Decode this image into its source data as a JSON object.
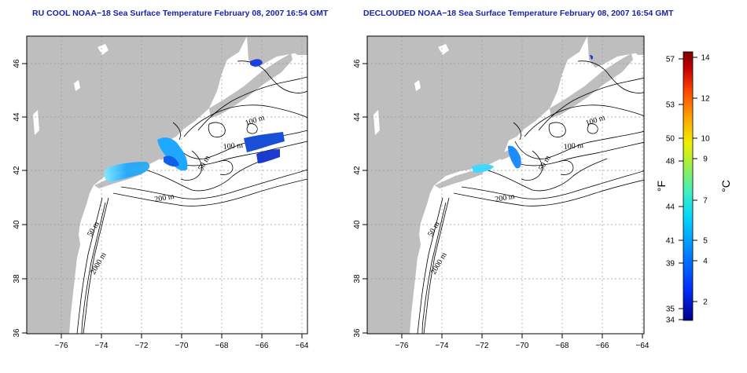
{
  "titles": {
    "left": "RU COOL NOAA−18 Sea Surface Temperature February 08, 2007 16:54 GMT",
    "right": "DECLOUDED NOAA−18 Sea Surface Temperature February 08, 2007 16:54 GMT"
  },
  "axes": {
    "lon_ticks": [
      "−76",
      "−74",
      "−72",
      "−70",
      "−68",
      "−66",
      "−64"
    ],
    "lat_ticks": [
      "36",
      "38",
      "40",
      "42",
      "44",
      "46"
    ],
    "lon_range": [
      -77,
      -63
    ],
    "lat_range": [
      35,
      46
    ]
  },
  "contours": {
    "labels": [
      "100 m",
      "100 m",
      "50 m",
      "200 m",
      "50 m",
      "2000 m"
    ]
  },
  "colorbar": {
    "fahrenheit_label": "°F",
    "celsius_label": "°C",
    "fahrenheit_ticks": [
      "57",
      "53",
      "50",
      "48",
      "44",
      "41",
      "39",
      "35",
      "34"
    ],
    "celsius_ticks": [
      "14",
      "12",
      "10",
      "9",
      "7",
      "5",
      "4",
      "2"
    ],
    "celsius_range": [
      1,
      14
    ],
    "colors": [
      "#00008b",
      "#0030ff",
      "#0096ff",
      "#00d4ff",
      "#40f0c0",
      "#a0f040",
      "#f0f000",
      "#ffa000",
      "#ff4000",
      "#c00000",
      "#800000"
    ]
  },
  "colors": {
    "land": "#bebebe",
    "ocean": "#ffffff",
    "title": "#1a22a8"
  }
}
